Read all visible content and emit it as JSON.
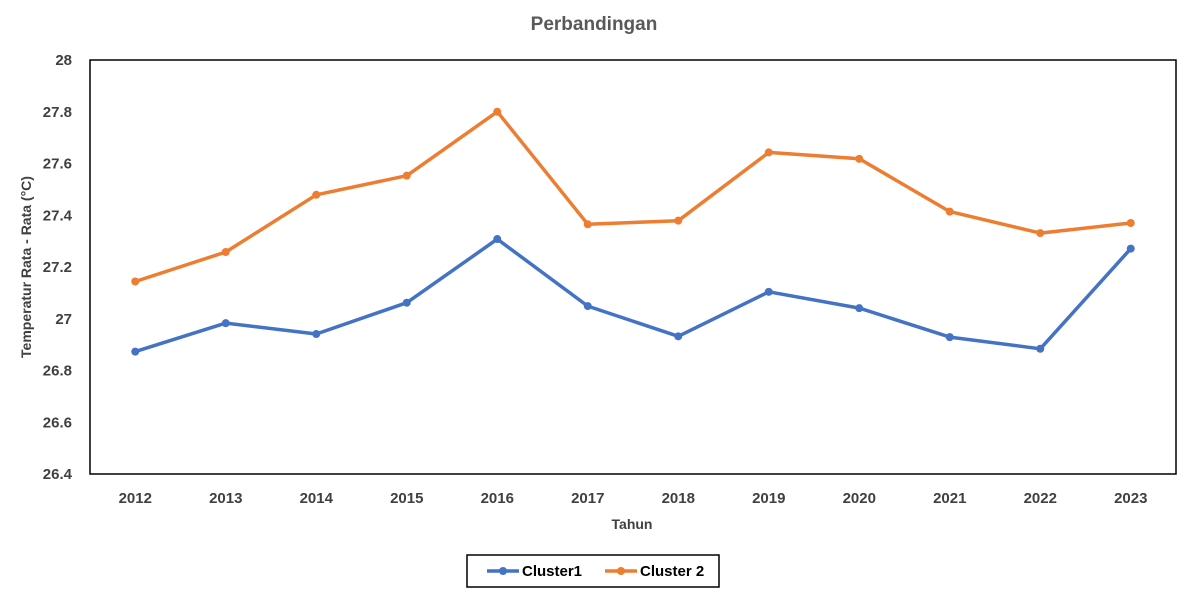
{
  "chart_data": {
    "type": "line",
    "title": "Perbandingan",
    "xlabel": "Tahun",
    "ylabel": "Temperatur Rata - Rata (°C)",
    "categories": [
      "2012",
      "2013",
      "2014",
      "2015",
      "2016",
      "2017",
      "2018",
      "2019",
      "2020",
      "2021",
      "2022",
      "2023"
    ],
    "ylim": [
      26.4,
      28
    ],
    "yticks": [
      26.4,
      26.6,
      26.8,
      27,
      27.2,
      27.4,
      27.6,
      27.8,
      28
    ],
    "ytick_labels": [
      "26.4",
      "26.6",
      "26.8",
      "27",
      "27.2",
      "27.4",
      "27.6",
      "27.8",
      "28"
    ],
    "grid": false,
    "legend_position": "bottom",
    "series": [
      {
        "name": "Cluster1",
        "color": "#4472C4",
        "values": [
          26.873,
          26.983,
          26.941,
          27.062,
          27.308,
          27.049,
          26.932,
          27.104,
          27.041,
          26.929,
          26.884,
          27.271
        ]
      },
      {
        "name": "Cluster 2",
        "color": "#ED7D31",
        "values": [
          27.144,
          27.258,
          27.479,
          27.553,
          27.8,
          27.365,
          27.379,
          27.643,
          27.618,
          27.414,
          27.331,
          27.37
        ]
      }
    ]
  }
}
